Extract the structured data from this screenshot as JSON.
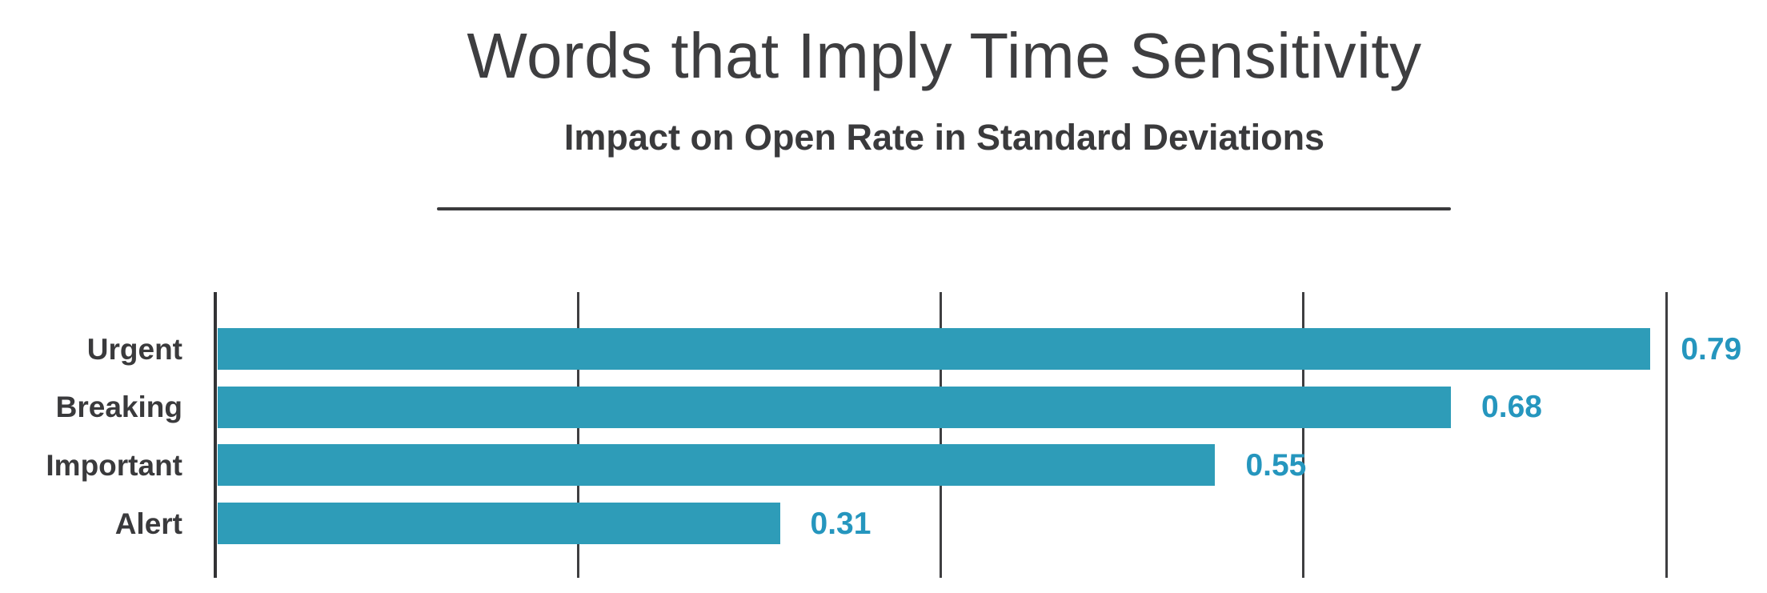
{
  "chart_data": {
    "type": "bar",
    "orientation": "horizontal",
    "title": "Words that Imply Time Sensitivity",
    "subtitle": "Impact on Open Rate in Standard Deviations",
    "categories": [
      "Urgent",
      "Breaking",
      "Important",
      "Alert"
    ],
    "values": [
      0.79,
      0.68,
      0.55,
      0.31
    ],
    "value_labels": [
      "0.79",
      "0.68",
      "0.55",
      "0.31"
    ],
    "xlabel": "",
    "ylabel": "",
    "xlim": [
      0,
      0.8
    ],
    "xticks": [
      0,
      0.2,
      0.4,
      0.6,
      0.8
    ],
    "xtick_labels_visible": false,
    "grid": "vertical-gridlines-only",
    "legend": "none",
    "colors": {
      "bar": "#2e9cb8",
      "value_label": "#2596be",
      "category_label": "#3a3a3c",
      "title": "#3e3e40",
      "subtitle": "#3a3a3c",
      "gridline": "#3f3f41",
      "axis_line": "#333335",
      "divider": "#3a3a3c",
      "background": "#ffffff"
    }
  }
}
